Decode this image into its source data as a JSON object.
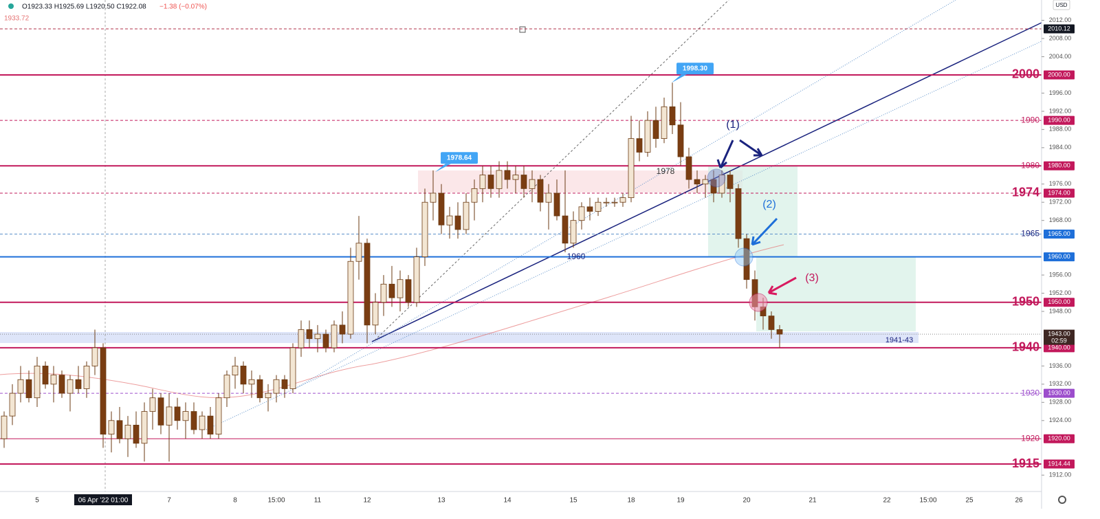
{
  "chart_data": {
    "type": "candlestick",
    "header": {
      "ohlc": "O1923.33 H1925.69 L1920.50 C1922.08",
      "change": "−1.38 (−0.07%)",
      "prev_level": "1933.72",
      "currency": "USD"
    },
    "categories": [
      null,
      null,
      null,
      null,
      "5",
      null,
      null,
      null,
      null,
      null,
      null,
      null,
      "06 Apr '22  01:00",
      null,
      null,
      null,
      null,
      null,
      null,
      null,
      "7",
      null,
      null,
      null,
      null,
      null,
      null,
      null,
      "8",
      null,
      null,
      null,
      null,
      "15:00",
      null,
      null,
      null,
      null,
      "11",
      null,
      null,
      null,
      null,
      null,
      "12",
      null,
      null,
      null,
      null,
      null,
      null,
      null,
      null,
      "13",
      null,
      null,
      null,
      null,
      null,
      null,
      null,
      "14",
      null,
      null,
      null,
      null,
      null,
      null,
      null,
      "15",
      null,
      null,
      null,
      null,
      null,
      null,
      "18",
      null,
      null,
      null,
      null,
      null,
      "19",
      null,
      null,
      null,
      null,
      null,
      null,
      null,
      "20",
      null,
      null,
      null,
      null,
      null,
      null,
      null,
      "21",
      null,
      null,
      null,
      null,
      null,
      null,
      null,
      null,
      "22",
      null,
      null,
      null,
      null,
      "15:00",
      null,
      null,
      null,
      null,
      "25",
      null,
      null,
      null,
      null,
      null,
      "26",
      null,
      null
    ],
    "values": [
      [
        1920,
        1926,
        1918,
        1925
      ],
      [
        1925,
        1932,
        1923,
        1930
      ],
      [
        1930,
        1936,
        1928,
        1933
      ],
      [
        1933,
        1935,
        1928,
        1929
      ],
      [
        1929,
        1938,
        1927,
        1936
      ],
      [
        1936,
        1937,
        1931,
        1932
      ],
      [
        1932,
        1936,
        1928,
        1934
      ],
      [
        1934,
        1935,
        1929,
        1930
      ],
      [
        1930,
        1934,
        1926,
        1933
      ],
      [
        1933,
        1936,
        1930,
        1931
      ],
      [
        1931,
        1937,
        1929,
        1936
      ],
      [
        1936,
        1944,
        1934,
        1940
      ],
      [
        1940,
        1941,
        1918,
        1921
      ],
      [
        1921,
        1926,
        1917,
        1924
      ],
      [
        1924,
        1927,
        1919,
        1920
      ],
      [
        1920,
        1925,
        1916,
        1923
      ],
      [
        1923,
        1926,
        1918,
        1919
      ],
      [
        1919,
        1928,
        1915,
        1926
      ],
      [
        1926,
        1931,
        1922,
        1929
      ],
      [
        1929,
        1930,
        1921,
        1923
      ],
      [
        1923,
        1930,
        1915,
        1927
      ],
      [
        1927,
        1929,
        1922,
        1924
      ],
      [
        1924,
        1928,
        1920,
        1926
      ],
      [
        1926,
        1928,
        1921,
        1922
      ],
      [
        1922,
        1926,
        1920,
        1925
      ],
      [
        1925,
        1927,
        1920,
        1921
      ],
      [
        1921,
        1930,
        1920,
        1929
      ],
      [
        1929,
        1935,
        1927,
        1934
      ],
      [
        1934,
        1938,
        1931,
        1936
      ],
      [
        1936,
        1937,
        1930,
        1932
      ],
      [
        1932,
        1935,
        1929,
        1933
      ],
      [
        1933,
        1934,
        1928,
        1929
      ],
      [
        1929,
        1932,
        1926,
        1930
      ],
      [
        1930,
        1934,
        1928,
        1933
      ],
      [
        1933,
        1934,
        1929,
        1931
      ],
      [
        1931,
        1941,
        1930,
        1940
      ],
      [
        1940,
        1946,
        1938,
        1944
      ],
      [
        1944,
        1946,
        1940,
        1942
      ],
      [
        1942,
        1945,
        1939,
        1943
      ],
      [
        1943,
        1944,
        1939,
        1940
      ],
      [
        1940,
        1946,
        1939,
        1945
      ],
      [
        1945,
        1948,
        1941,
        1943
      ],
      [
        1943,
        1962,
        1942,
        1959
      ],
      [
        1959,
        1969,
        1955,
        1963
      ],
      [
        1963,
        1964,
        1941,
        1945
      ],
      [
        1945,
        1952,
        1943,
        1950
      ],
      [
        1950,
        1956,
        1947,
        1954
      ],
      [
        1954,
        1958,
        1949,
        1951
      ],
      [
        1951,
        1957,
        1948,
        1955
      ],
      [
        1955,
        1956,
        1949,
        1950
      ],
      [
        1950,
        1962,
        1949,
        1960
      ],
      [
        1960,
        1975,
        1958,
        1972
      ],
      [
        1972,
        1979,
        1968,
        1974
      ],
      [
        1974,
        1976,
        1965,
        1967
      ],
      [
        1967,
        1971,
        1964,
        1969
      ],
      [
        1969,
        1972,
        1964,
        1966
      ],
      [
        1966,
        1974,
        1965,
        1972
      ],
      [
        1972,
        1977,
        1968,
        1975
      ],
      [
        1975,
        1980,
        1972,
        1978
      ],
      [
        1978,
        1980,
        1973,
        1975
      ],
      [
        1975,
        1981,
        1973,
        1979
      ],
      [
        1979,
        1981,
        1975,
        1977
      ],
      [
        1977,
        1980,
        1974,
        1978
      ],
      [
        1978,
        1980,
        1973,
        1975
      ],
      [
        1975,
        1979,
        1972,
        1977
      ],
      [
        1977,
        1978,
        1970,
        1972
      ],
      [
        1972,
        1976,
        1966,
        1974
      ],
      [
        1974,
        1977,
        1968,
        1969
      ],
      [
        1969,
        1979,
        1961,
        1963
      ],
      [
        1963,
        1970,
        1962,
        1968
      ],
      [
        1968,
        1972,
        1966,
        1971
      ],
      [
        1971,
        1973,
        1968,
        1970
      ],
      [
        1970,
        1973,
        1969,
        1972
      ],
      [
        1972,
        1973,
        1971,
        1972
      ],
      [
        1972,
        1973,
        1971,
        1972
      ],
      [
        1972,
        1974,
        1971,
        1973
      ],
      [
        1973,
        1991,
        1972,
        1986
      ],
      [
        1986,
        1990,
        1981,
        1983
      ],
      [
        1983,
        1992,
        1982,
        1990
      ],
      [
        1990,
        1993,
        1984,
        1986
      ],
      [
        1986,
        1995,
        1985,
        1993
      ],
      [
        1993,
        1998.3,
        1987,
        1989
      ],
      [
        1989,
        1994,
        1980,
        1982
      ],
      [
        1982,
        1984,
        1975,
        1977
      ],
      [
        1977,
        1979,
        1974,
        1976
      ],
      [
        1976,
        1978,
        1973,
        1977
      ],
      [
        1977,
        1979,
        1972,
        1974
      ],
      [
        1974,
        1979,
        1973,
        1978
      ],
      [
        1978,
        1979,
        1972,
        1975
      ],
      [
        1975,
        1976,
        1962,
        1964
      ],
      [
        1964,
        1965,
        1953,
        1955
      ],
      [
        1955,
        1957,
        1946,
        1949
      ],
      [
        1949,
        1951,
        1944,
        1947
      ],
      [
        1947,
        1948,
        1942,
        1944
      ],
      [
        1944,
        1945,
        1940,
        1943
      ]
    ],
    "up_color": "#f3e6d3",
    "down_color": "#7a3d12",
    "wick_color": "#6b3a12",
    "ylim": [
      1908.4,
      2016.47
    ],
    "yticks": [
      {
        "value": 2012,
        "label": "2012.00"
      },
      {
        "value": 2008,
        "label": "2008.00"
      },
      {
        "value": 2004,
        "label": "2004.00"
      },
      {
        "value": 1996,
        "label": "1996.00"
      },
      {
        "value": 1992,
        "label": "1992.00"
      },
      {
        "value": 1988,
        "label": "1988.00"
      },
      {
        "value": 1984,
        "label": "1984.00"
      },
      {
        "value": 1976,
        "label": "1976.00"
      },
      {
        "value": 1972,
        "label": "1972.00"
      },
      {
        "value": 1968,
        "label": "1968.00"
      },
      {
        "value": 1956,
        "label": "1956.00"
      },
      {
        "value": 1952,
        "label": "1952.00"
      },
      {
        "value": 1948,
        "label": "1948.00"
      },
      {
        "value": 1936,
        "label": "1936.00"
      },
      {
        "value": 1932,
        "label": "1932.00"
      },
      {
        "value": 1928,
        "label": "1928.00"
      },
      {
        "value": 1924,
        "label": "1924.00"
      },
      {
        "value": 1912,
        "label": "1912.00"
      }
    ],
    "levels": [
      {
        "value": 2010.12,
        "price_label": "2010.12",
        "color": "#b0304a",
        "box": "#131722",
        "dashed": true,
        "width": 1
      },
      {
        "value": 2000,
        "label": "2000",
        "price_label": "2000.00",
        "color": "#c2185b",
        "box": "#c2185b",
        "dashed": false,
        "width": 2,
        "big": true
      },
      {
        "value": 1990,
        "label": "1990",
        "price_label": "1990.00",
        "color": "#c2185b",
        "box": "#c2185b",
        "dashed": true,
        "width": 1
      },
      {
        "value": 1980,
        "label": "1980",
        "price_label": "1980.00",
        "color": "#c2185b",
        "box": "#c2185b",
        "dashed": false,
        "width": 2
      },
      {
        "value": 1974,
        "label": "1974",
        "price_label": "1974.00",
        "color": "#c2185b",
        "box": "#c2185b",
        "dashed": true,
        "width": 1,
        "big": true
      },
      {
        "value": 1965,
        "label": "1965",
        "price_label": "1965.00",
        "color": "#5b8fc9",
        "box": "#1e6fd9",
        "dashed": true,
        "width": 1,
        "label_color": "#1a237e"
      },
      {
        "value": 1960,
        "price_label": "1960.00",
        "color": "#1e6fd9",
        "box": "#1e6fd9",
        "dashed": false,
        "width": 2
      },
      {
        "value": 1950,
        "label": "1950",
        "price_label": "1950.00",
        "color": "#c2185b",
        "box": "#c2185b",
        "dashed": false,
        "width": 2,
        "big": true
      },
      {
        "value": 1940,
        "label": "1940",
        "price_label": "1940.00",
        "color": "#c2185b",
        "box": "#c2185b",
        "dashed": false,
        "width": 2,
        "big": true
      },
      {
        "value": 1930,
        "label": "1930",
        "price_label": "1930.00",
        "color": "#9c4dcc",
        "box": "#9c4dcc",
        "dashed": true,
        "width": 1
      },
      {
        "value": 1920,
        "label": "1920",
        "price_label": "1920.00",
        "color": "#c2185b",
        "box": "#c2185b",
        "dashed": false,
        "width": 1
      },
      {
        "value": 1914.44,
        "label": "1915",
        "price_label": "1914.44",
        "color": "#c2185b",
        "box": "#c2185b",
        "dashed": false,
        "width": 2,
        "big": true
      }
    ],
    "last_price": {
      "value": 1943,
      "label": "1943.00",
      "countdown": "02:59"
    },
    "annotations": [
      {
        "label": "1998.30",
        "value": 1998.3
      },
      {
        "label": "1978.64",
        "value": 1978.64
      }
    ],
    "notes": {
      "step1": "(1)",
      "step2": "(2)",
      "step3": "(3)",
      "n1978": "1978",
      "n1960": "1960",
      "zone": "1941-43"
    }
  }
}
